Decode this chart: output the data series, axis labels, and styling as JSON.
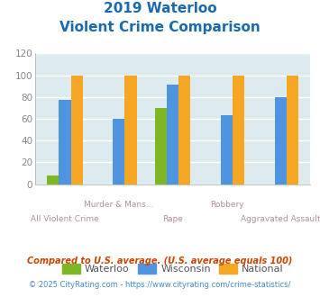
{
  "title_line1": "2019 Waterloo",
  "title_line2": "Violent Crime Comparison",
  "categories": [
    "All Violent Crime",
    "Murder & Mans...",
    "Rape",
    "Robbery",
    "Aggravated Assault"
  ],
  "series": {
    "Waterloo": [
      8,
      0,
      70,
      0,
      0
    ],
    "Wisconsin": [
      77,
      60,
      91,
      63,
      80
    ],
    "National": [
      100,
      100,
      100,
      100,
      100
    ]
  },
  "colors": {
    "Waterloo": "#7db726",
    "Wisconsin": "#4f94e0",
    "National": "#f5a623"
  },
  "ylim": [
    0,
    120
  ],
  "yticks": [
    0,
    20,
    40,
    60,
    80,
    100,
    120
  ],
  "plot_bg_color": "#ddeaee",
  "grid_color": "#ffffff",
  "xlabel_top_color": "#b09090",
  "xlabel_bot_color": "#b09090",
  "title_color": "#1a6aad",
  "legend_label_color": "#555555",
  "footnote1": "Compared to U.S. average. (U.S. average equals 100)",
  "footnote2": "© 2025 CityRating.com - https://www.cityrating.com/crime-statistics/",
  "footnote1_color": "#cc4400",
  "footnote2_color": "#4488cc"
}
